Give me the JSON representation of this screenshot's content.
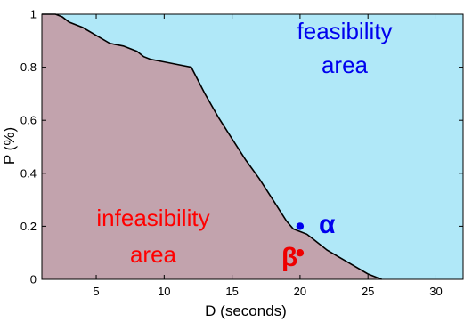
{
  "chart_data": {
    "type": "area",
    "xlabel": "D (seconds)",
    "ylabel": "P (%)",
    "xlim": [
      1,
      32
    ],
    "ylim": [
      0,
      1
    ],
    "xticks": [
      5,
      10,
      15,
      20,
      25,
      30
    ],
    "yticks": [
      0,
      0.2,
      0.4,
      0.6,
      0.8,
      1
    ],
    "ytick_labels": [
      "0",
      "0.2",
      "0.4",
      "0.6",
      "0.8",
      "1"
    ],
    "grid": false,
    "boundary": {
      "x": [
        2.0,
        2.5,
        3.0,
        4.0,
        5.0,
        6.0,
        7.0,
        8.0,
        8.5,
        9.0,
        10.0,
        11.0,
        12.0,
        13.0,
        14.0,
        15.0,
        16.0,
        17.0,
        18.0,
        19.0,
        19.5,
        20.5,
        21.0,
        22.0,
        23.0,
        24.0,
        25.0,
        26.0
      ],
      "y": [
        1.0,
        0.99,
        0.97,
        0.95,
        0.92,
        0.89,
        0.88,
        0.86,
        0.84,
        0.83,
        0.82,
        0.81,
        0.8,
        0.7,
        0.61,
        0.53,
        0.45,
        0.38,
        0.3,
        0.22,
        0.19,
        0.17,
        0.15,
        0.11,
        0.08,
        0.05,
        0.02,
        0.0
      ]
    },
    "regions": {
      "infeasibility": {
        "label_lines": [
          "infeasibility",
          "area"
        ],
        "color": "#c2a3ad",
        "text_color": "#ff0000"
      },
      "feasibility": {
        "label_lines": [
          "feasibility",
          "area"
        ],
        "color": "#b0e8f8",
        "text_color": "#0000ee"
      }
    },
    "points": [
      {
        "label": "α",
        "x": 20,
        "y": 0.2,
        "color": "#0000ee"
      },
      {
        "label": "β",
        "x": 20,
        "y": 0.1,
        "color": "#ee0000"
      }
    ]
  }
}
